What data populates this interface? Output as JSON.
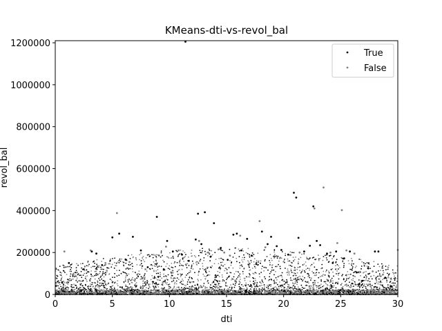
{
  "chart_data": {
    "type": "scatter",
    "title": "KMeans-dti-vs-revol_bal",
    "xlabel": "dti",
    "ylabel": "revol_bal",
    "xlim": [
      0,
      30
    ],
    "ylim": [
      0,
      1210000
    ],
    "x_ticks": [
      0,
      5,
      10,
      15,
      20,
      25,
      30
    ],
    "y_ticks": [
      0,
      200000,
      400000,
      600000,
      800000,
      1000000,
      1200000
    ],
    "grid": false,
    "legend_position": "top-right",
    "series": [
      {
        "name": "True",
        "color": "#000000",
        "points": [
          [
            0.6,
            58000
          ],
          [
            1.2,
            150000
          ],
          [
            2.5,
            120000
          ],
          [
            3.2,
            205000
          ],
          [
            3.6,
            195000
          ],
          [
            4.1,
            140000
          ],
          [
            5.0,
            272000
          ],
          [
            5.6,
            290000
          ],
          [
            6.2,
            165000
          ],
          [
            6.8,
            275000
          ],
          [
            7.5,
            210000
          ],
          [
            8.1,
            130000
          ],
          [
            8.9,
            370000
          ],
          [
            9.5,
            120000
          ],
          [
            9.8,
            255000
          ],
          [
            10.3,
            205000
          ],
          [
            11.1,
            190000
          ],
          [
            11.4,
            1205000
          ],
          [
            11.7,
            160000
          ],
          [
            12.3,
            262000
          ],
          [
            12.5,
            385000
          ],
          [
            12.8,
            240000
          ],
          [
            13.1,
            392000
          ],
          [
            13.6,
            180000
          ],
          [
            13.9,
            340000
          ],
          [
            14.5,
            222000
          ],
          [
            15.1,
            165000
          ],
          [
            15.6,
            285000
          ],
          [
            15.9,
            290000
          ],
          [
            16.3,
            210000
          ],
          [
            16.8,
            265000
          ],
          [
            17.2,
            185000
          ],
          [
            17.6,
            145000
          ],
          [
            18.1,
            300000
          ],
          [
            18.6,
            240000
          ],
          [
            18.9,
            275000
          ],
          [
            19.4,
            230000
          ],
          [
            19.8,
            212000
          ],
          [
            20.4,
            190000
          ],
          [
            20.9,
            485000
          ],
          [
            21.1,
            462000
          ],
          [
            21.3,
            270000
          ],
          [
            21.8,
            205000
          ],
          [
            22.3,
            232000
          ],
          [
            22.6,
            420000
          ],
          [
            22.9,
            255000
          ],
          [
            23.2,
            235000
          ],
          [
            23.8,
            195000
          ],
          [
            24.3,
            150000
          ],
          [
            24.6,
            205000
          ],
          [
            25.3,
            172000
          ],
          [
            25.8,
            205000
          ],
          [
            26.4,
            105000
          ],
          [
            26.9,
            65000
          ],
          [
            27.4,
            125000
          ],
          [
            28.0,
            205000
          ],
          [
            28.3,
            205000
          ],
          [
            28.9,
            80000
          ],
          [
            29.4,
            38000
          ]
        ]
      },
      {
        "name": "False",
        "color": "#808080",
        "points": [
          [
            0.8,
            205000
          ],
          [
            1.9,
            105000
          ],
          [
            3.1,
            210000
          ],
          [
            4.4,
            150000
          ],
          [
            5.4,
            388000
          ],
          [
            6.5,
            155000
          ],
          [
            7.9,
            120000
          ],
          [
            9.7,
            228000
          ],
          [
            10.8,
            210000
          ],
          [
            12.6,
            255000
          ],
          [
            13.4,
            200000
          ],
          [
            14.3,
            215000
          ],
          [
            14.8,
            200000
          ],
          [
            15.3,
            185000
          ],
          [
            16.2,
            280000
          ],
          [
            17.9,
            350000
          ],
          [
            18.4,
            225000
          ],
          [
            19.7,
            175000
          ],
          [
            20.6,
            188000
          ],
          [
            21.4,
            200000
          ],
          [
            22.2,
            168000
          ],
          [
            22.7,
            410000
          ],
          [
            23.5,
            510000
          ],
          [
            24.1,
            200000
          ],
          [
            24.7,
            245000
          ],
          [
            25.1,
            402000
          ],
          [
            25.5,
            210000
          ],
          [
            26.2,
            195000
          ],
          [
            27.8,
            110000
          ],
          [
            28.7,
            95000
          ],
          [
            29.6,
            55000
          ],
          [
            30.0,
            212000
          ]
        ]
      }
    ]
  }
}
